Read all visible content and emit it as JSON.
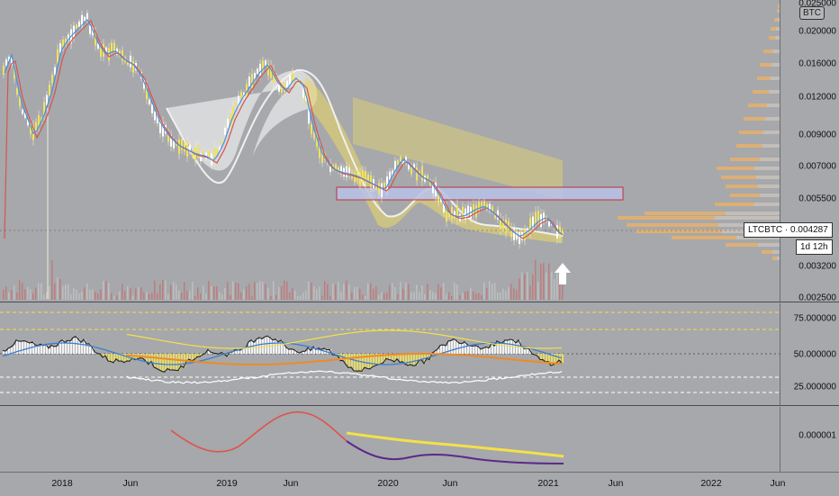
{
  "symbol": {
    "label": "LTCBTC",
    "price": "0.004287",
    "countdown": "1d 12h",
    "currency": "BTC"
  },
  "price_axis": {
    "labels": [
      "0.025000",
      "0.020000",
      "0.016000",
      "0.012000",
      "0.009000",
      "0.007000",
      "0.005500",
      "0.004287",
      "0.003200",
      "0.002500"
    ]
  },
  "osc_axis": {
    "labels": [
      "75.000000",
      "50.000000",
      "25.000000"
    ]
  },
  "sub_axis": {
    "labels": [
      "0.000001"
    ]
  },
  "time_axis": {
    "labels": [
      "2018",
      "Jun",
      "2019",
      "Jun",
      "2020",
      "Jun",
      "2021",
      "Jun",
      "2022",
      "Jun"
    ]
  },
  "colors": {
    "background": "#a6a8ab",
    "candle": "#f2e35a",
    "ma_red": "#d9534f",
    "ma_blue": "#4a90d9",
    "zone_fill": "#b8c2e8",
    "zone_border": "#c0303a",
    "volume_profile": "#e8b06a",
    "arrow": "#ffffff"
  }
}
